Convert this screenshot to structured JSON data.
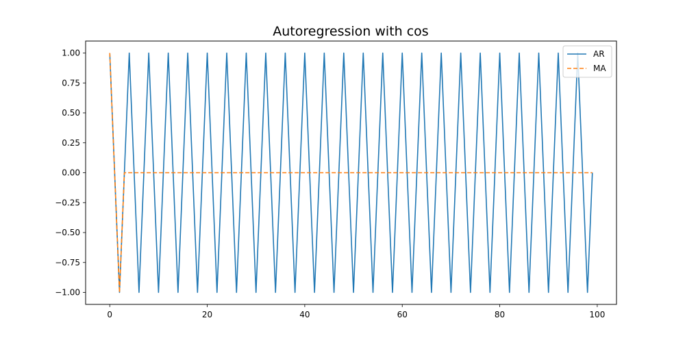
{
  "chart_data": {
    "type": "line",
    "title": "Autoregression with cos",
    "xlabel": "",
    "ylabel": "",
    "xlim": [
      -4.95,
      103.95
    ],
    "ylim": [
      -1.1,
      1.1
    ],
    "xticks": [
      0,
      20,
      40,
      60,
      80,
      100
    ],
    "yticks": [
      -1.0,
      -0.75,
      -0.5,
      -0.25,
      0.0,
      0.25,
      0.5,
      0.75,
      1.0
    ],
    "xtick_labels": [
      "0",
      "20",
      "40",
      "60",
      "80",
      "100"
    ],
    "ytick_labels": [
      "−1.00",
      "−0.75",
      "−0.50",
      "−0.25",
      "0.00",
      "0.25",
      "0.50",
      "0.75",
      "1.00"
    ],
    "grid": false,
    "legend_position": "upper right",
    "series": [
      {
        "name": "AR",
        "color": "#1f77b4",
        "style": "solid",
        "description": "cos(pi*t/2) for t = 0..99",
        "x_start": 0,
        "x_end": 99
      },
      {
        "name": "MA",
        "color": "#ff7f0e",
        "style": "dashed",
        "x": [
          0,
          2,
          3,
          99
        ],
        "y": [
          1,
          -1,
          0,
          0
        ]
      }
    ]
  }
}
